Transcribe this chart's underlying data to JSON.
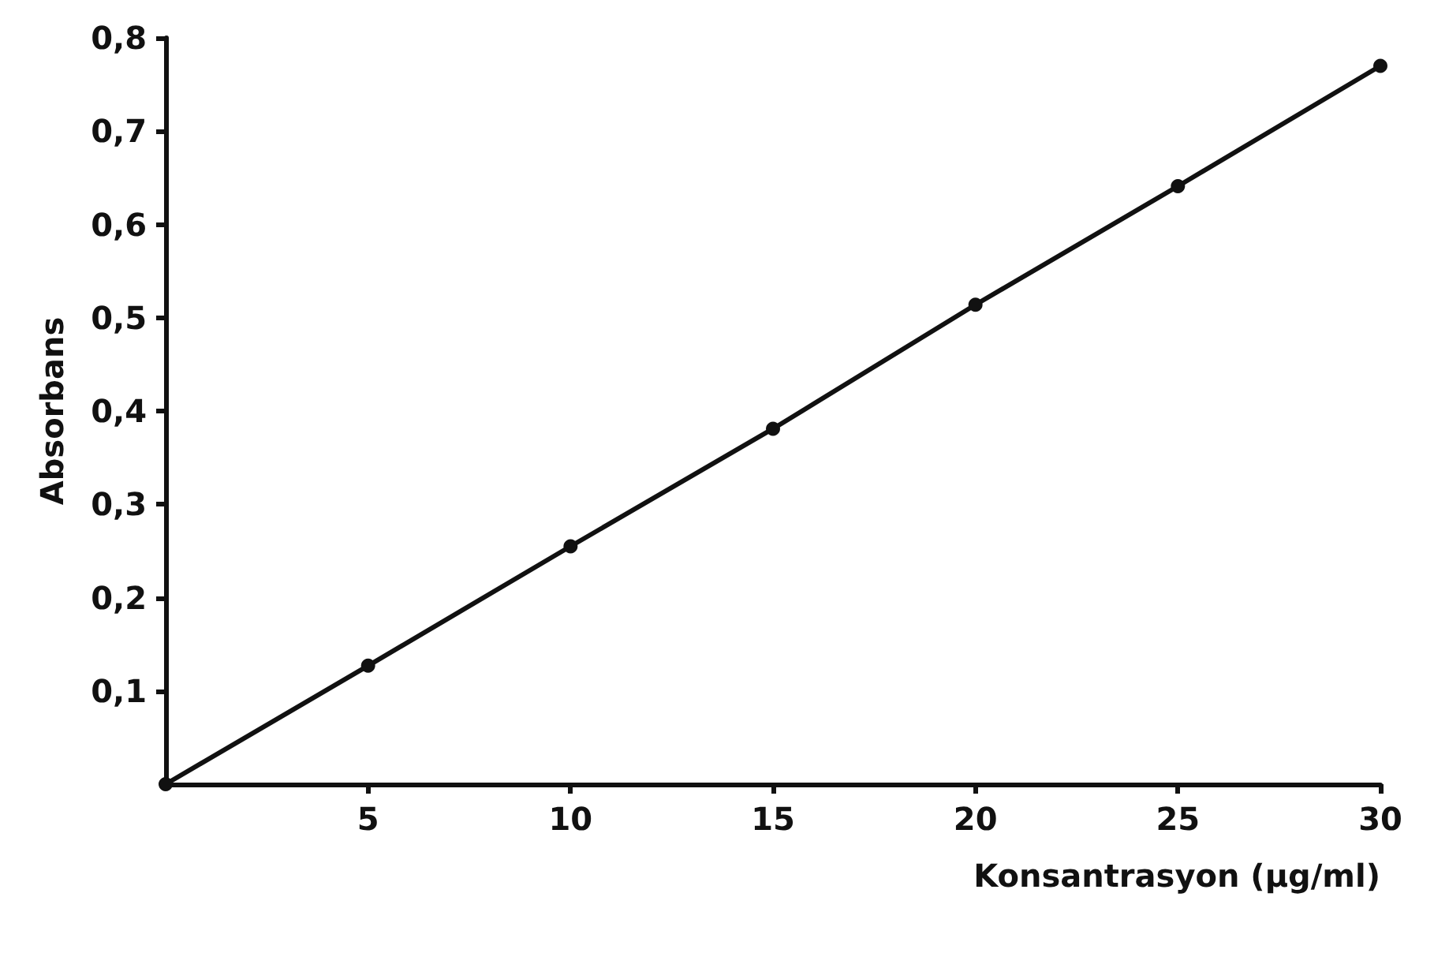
{
  "chart_data": {
    "type": "line",
    "xlabel": "Konsantrasyon (µg/ml)",
    "ylabel": "Absorbans",
    "x": [
      0,
      5,
      10,
      15,
      20,
      25,
      30
    ],
    "series": [
      {
        "color": "#111111",
        "values": [
          0,
          0.127,
          0.255,
          0.381,
          0.514,
          0.641,
          0.77
        ]
      }
    ],
    "xlim": [
      0,
      30
    ],
    "xticks": [
      5,
      10,
      15,
      20,
      25,
      30
    ],
    "ylim": [
      0,
      0.8
    ],
    "yticks": [
      {
        "value": 0.1,
        "label": "0,1"
      },
      {
        "value": 0.2,
        "label": "0,2"
      },
      {
        "value": 0.3,
        "label": "0,3"
      },
      {
        "value": 0.4,
        "label": "0,4"
      },
      {
        "value": 0.5,
        "label": "0,5"
      },
      {
        "value": 0.6,
        "label": "0,6"
      },
      {
        "value": 0.7,
        "label": "0,7"
      },
      {
        "value": 0.8,
        "label": "0,8"
      }
    ],
    "marker": "circle",
    "line_style": "solid"
  }
}
